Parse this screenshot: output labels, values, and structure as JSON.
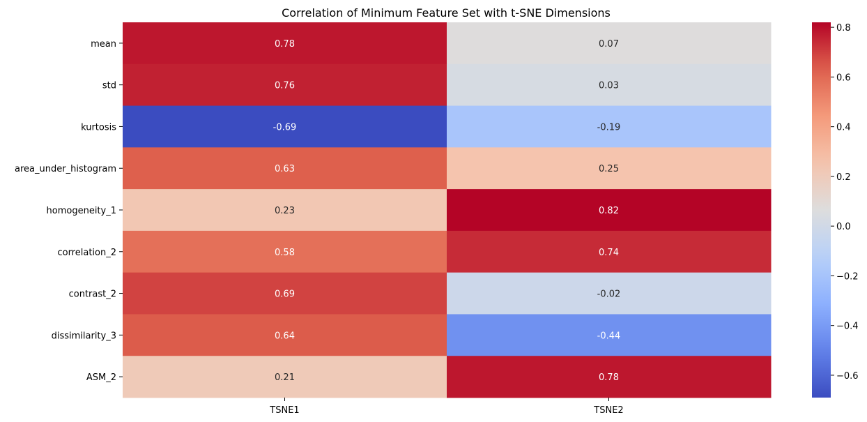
{
  "chart_data": {
    "type": "heatmap",
    "title": "Correlation of Minimum Feature Set with t-SNE Dimensions",
    "rows": [
      "mean",
      "std",
      "kurtosis",
      "area_under_histogram",
      "homogeneity_1",
      "correlation_2",
      "contrast_2",
      "dissimilarity_3",
      "ASM_2"
    ],
    "columns": [
      "TSNE1",
      "TSNE2"
    ],
    "values": [
      [
        0.78,
        0.07
      ],
      [
        0.76,
        0.03
      ],
      [
        -0.69,
        -0.19
      ],
      [
        0.63,
        0.25
      ],
      [
        0.23,
        0.82
      ],
      [
        0.58,
        0.74
      ],
      [
        0.69,
        -0.02
      ],
      [
        0.64,
        -0.44
      ],
      [
        0.21,
        0.78
      ]
    ],
    "annotations": [
      [
        "0.78",
        "0.07"
      ],
      [
        "0.76",
        "0.03"
      ],
      [
        "-0.69",
        "-0.19"
      ],
      [
        "0.63",
        "0.25"
      ],
      [
        "0.23",
        "0.82"
      ],
      [
        "0.58",
        "0.74"
      ],
      [
        "0.69",
        "-0.02"
      ],
      [
        "0.64",
        "-0.44"
      ],
      [
        "0.21",
        "0.78"
      ]
    ],
    "colormap": "coolwarm",
    "vmin": -0.69,
    "vmax": 0.82,
    "colorbar_ticks": [
      "0.8",
      "0.6",
      "0.4",
      "0.2",
      "0.0",
      "−0.2",
      "−0.4",
      "−0.6"
    ],
    "colorbar_tick_values": [
      0.8,
      0.6,
      0.4,
      0.2,
      0.0,
      -0.2,
      -0.4,
      -0.6
    ]
  }
}
